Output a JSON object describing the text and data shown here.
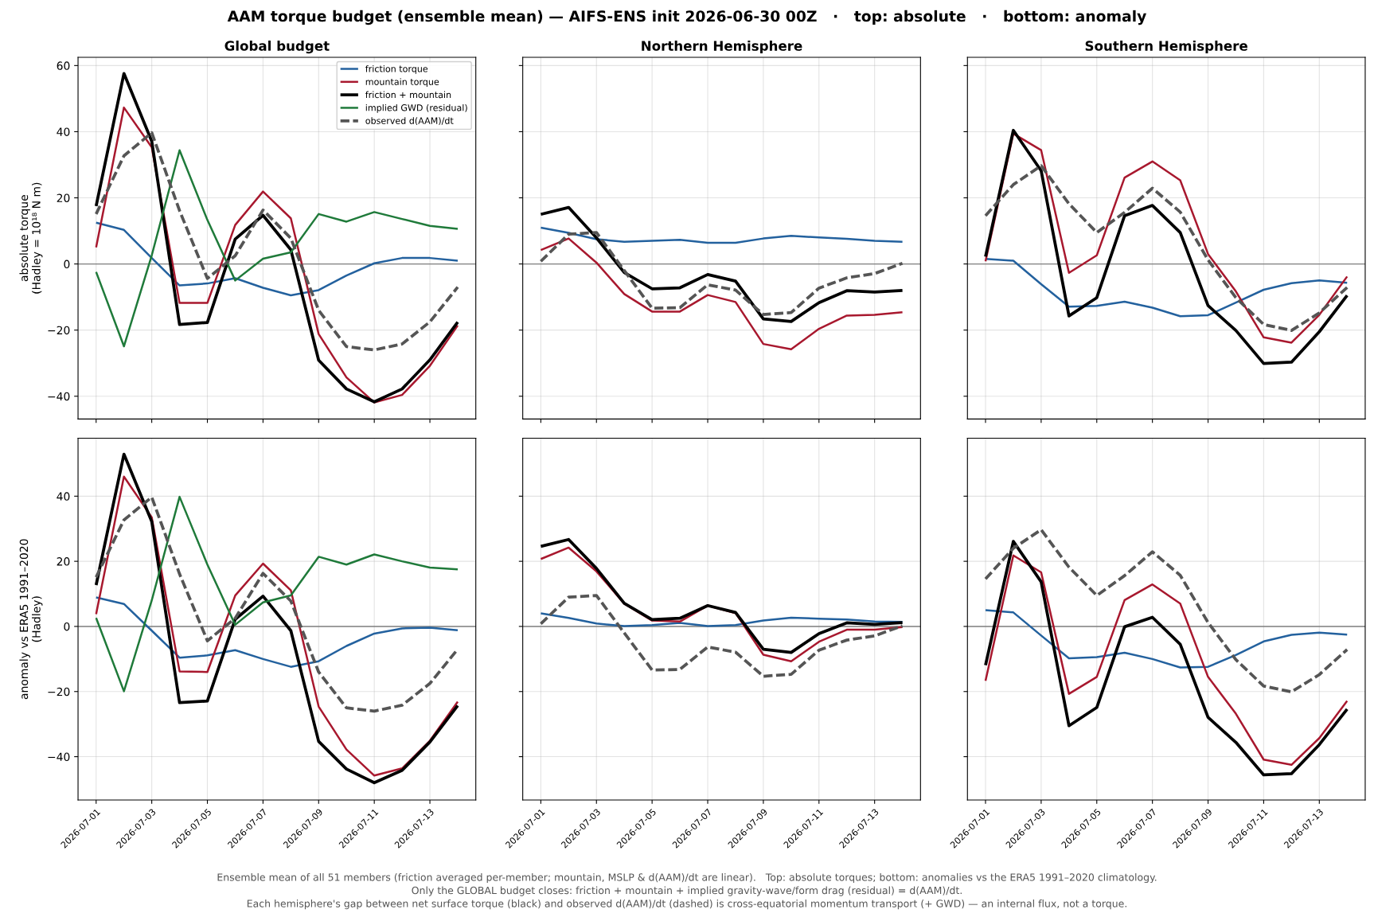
{
  "chart_data": [
    {
      "type": "other",
      "title": "AAM torque budget (ensemble mean) — AIFS-ENS init 2026-06-30 00Z   ·   top: absolute   ·   bottom: anomaly",
      "annotations": [
        "Ensemble mean of all 51 members (friction averaged per-member; mountain, MSLP & d(AAM)/dt are linear).   Top: absolute torques; bottom: anomalies vs the ERA5 1991–2020 climatology.",
        "Only the GLOBAL budget closes: friction + mountain + implied gravity-wave/form drag (residual) = d(AAM)/dt.",
        "Each hemisphere's gap between net surface torque (black) and observed d(AAM)/dt (dashed) is cross-equatorial momentum transport (+ GWD) — an internal flux, not a torque."
      ]
    },
    {
      "type": "line",
      "title": "Global budget",
      "ylabel": "absolute torque\n(Hadley = 10¹⁸ N m)",
      "x": [
        "2026-07-01",
        "2026-07-02",
        "2026-07-03",
        "2026-07-04",
        "2026-07-05",
        "2026-07-06",
        "2026-07-07",
        "2026-07-08",
        "2026-07-09",
        "2026-07-10",
        "2026-07-11",
        "2026-07-12",
        "2026-07-13",
        "2026-07-14"
      ],
      "xlim": [
        "2026-06-30T08:24",
        "2026-07-14T15:36"
      ],
      "xticks": [
        "2026-07-01",
        "2026-07-03",
        "2026-07-05",
        "2026-07-07",
        "2026-07-09",
        "2026-07-11",
        "2026-07-13"
      ],
      "ylim": [
        -46.9,
        62.5
      ],
      "yticks": [
        -40,
        -20,
        0,
        20,
        40,
        60
      ],
      "grid": true,
      "legend": "top right",
      "tick_labels": "y",
      "ref_lines": [
        {
          "axis": "y",
          "value": 0,
          "color": "#808080"
        }
      ],
      "series": [
        {
          "name": "friction torque",
          "color": "#23619e",
          "values": [
            12.5,
            10.3,
            1.8,
            -6.5,
            -5.9,
            -4.3,
            -7.2,
            -9.5,
            -7.9,
            -3.5,
            0.2,
            1.8,
            1.8,
            1.0
          ]
        },
        {
          "name": "mountain torque",
          "color": "#a8182e",
          "values": [
            5.0,
            47.3,
            35.3,
            -11.8,
            -11.8,
            11.8,
            21.9,
            13.8,
            -21.2,
            -34.3,
            -41.9,
            -39.6,
            -30.8,
            -18.6
          ]
        },
        {
          "name": "friction + mountain",
          "color": "#000000",
          "values": [
            17.5,
            57.6,
            37.1,
            -18.3,
            -17.7,
            7.5,
            14.7,
            4.3,
            -29.1,
            -37.8,
            -41.7,
            -37.8,
            -29.0,
            -17.6
          ]
        },
        {
          "name": "implied GWD (residual)",
          "color": "#1f7a3a",
          "values": [
            -2.4,
            -24.9,
            2.6,
            34.4,
            13.3,
            -5.0,
            1.6,
            3.5,
            15.1,
            12.8,
            15.7,
            13.6,
            11.5,
            10.6
          ]
        },
        {
          "name": "observed d(AAM)/dt",
          "color": "#555555",
          "line_style": "dashed",
          "values": [
            15.1,
            32.7,
            39.7,
            16.1,
            -4.4,
            2.5,
            16.3,
            7.8,
            -14.0,
            -25.0,
            -26.0,
            -24.2,
            -17.5,
            -7.0
          ]
        }
      ]
    },
    {
      "type": "line",
      "title": "Northern Hemisphere",
      "x": [
        "2026-07-01",
        "2026-07-02",
        "2026-07-03",
        "2026-07-04",
        "2026-07-05",
        "2026-07-06",
        "2026-07-07",
        "2026-07-08",
        "2026-07-09",
        "2026-07-10",
        "2026-07-11",
        "2026-07-12",
        "2026-07-13",
        "2026-07-14"
      ],
      "xlim": [
        "2026-06-30T08:24",
        "2026-07-14T15:36"
      ],
      "xticks": [
        "2026-07-01",
        "2026-07-03",
        "2026-07-05",
        "2026-07-07",
        "2026-07-09",
        "2026-07-11",
        "2026-07-13"
      ],
      "ylim": [
        -46.9,
        62.5
      ],
      "yticks": [
        -40,
        -20,
        0,
        20,
        40,
        60
      ],
      "grid": true,
      "tick_labels": false,
      "ref_lines": [
        {
          "axis": "y",
          "value": 0,
          "color": "#808080"
        }
      ],
      "series": [
        {
          "color": "#23619e",
          "values": [
            11.0,
            9.4,
            7.5,
            6.7,
            7.0,
            7.3,
            6.4,
            6.4,
            7.7,
            8.5,
            8.0,
            7.6,
            7.0,
            6.7
          ]
        },
        {
          "color": "#a8182e",
          "values": [
            4.2,
            7.7,
            0.4,
            -9.1,
            -14.4,
            -14.4,
            -9.4,
            -11.5,
            -24.2,
            -25.8,
            -19.6,
            -15.6,
            -15.4,
            -14.6
          ]
        },
        {
          "color": "#000000",
          "values": [
            15.0,
            17.1,
            7.9,
            -2.6,
            -7.5,
            -7.2,
            -3.2,
            -5.2,
            -16.6,
            -17.4,
            -11.7,
            -8.1,
            -8.5,
            -8.0
          ]
        },
        {
          "color": "#555555",
          "line_style": "dashed",
          "values": [
            0.8,
            9.0,
            9.5,
            -2.0,
            -13.4,
            -13.2,
            -6.3,
            -7.9,
            -15.3,
            -14.7,
            -7.3,
            -4.2,
            -2.9,
            0.2
          ]
        }
      ]
    },
    {
      "type": "line",
      "title": "Southern Hemisphere",
      "x": [
        "2026-07-01",
        "2026-07-02",
        "2026-07-03",
        "2026-07-04",
        "2026-07-05",
        "2026-07-06",
        "2026-07-07",
        "2026-07-08",
        "2026-07-09",
        "2026-07-10",
        "2026-07-11",
        "2026-07-12",
        "2026-07-13",
        "2026-07-14"
      ],
      "xlim": [
        "2026-06-30T08:24",
        "2026-07-14T15:36"
      ],
      "xticks": [
        "2026-07-01",
        "2026-07-03",
        "2026-07-05",
        "2026-07-07",
        "2026-07-09",
        "2026-07-11",
        "2026-07-13"
      ],
      "ylim": [
        -46.9,
        62.5
      ],
      "yticks": [
        -40,
        -20,
        0,
        20,
        40,
        60
      ],
      "grid": true,
      "tick_labels": false,
      "ref_lines": [
        {
          "axis": "y",
          "value": 0,
          "color": "#808080"
        }
      ],
      "series": [
        {
          "color": "#23619e",
          "values": [
            1.5,
            1.0,
            -6.1,
            -12.9,
            -12.7,
            -11.4,
            -13.2,
            -15.8,
            -15.5,
            -11.7,
            -7.8,
            -5.8,
            -5.0,
            -5.7
          ]
        },
        {
          "color": "#a8182e",
          "values": [
            0.8,
            39.4,
            34.4,
            -2.7,
            2.6,
            26.1,
            31.0,
            25.3,
            3.0,
            -8.3,
            -22.2,
            -23.8,
            -15.4,
            -3.8
          ]
        },
        {
          "color": "#000000",
          "values": [
            2.2,
            40.4,
            28.2,
            -15.7,
            -10.2,
            14.6,
            17.7,
            9.5,
            -12.6,
            -20.1,
            -30.1,
            -29.7,
            -20.5,
            -9.5
          ]
        },
        {
          "color": "#555555",
          "line_style": "dashed",
          "values": [
            14.6,
            24.0,
            29.7,
            18.2,
            9.5,
            15.6,
            22.9,
            15.7,
            1.2,
            -10.2,
            -18.3,
            -20.1,
            -14.8,
            -7.1
          ]
        }
      ]
    },
    {
      "type": "line",
      "ylabel": "anomaly vs ERA5 1991–2020\n(Hadley)",
      "x": [
        "2026-07-01",
        "2026-07-02",
        "2026-07-03",
        "2026-07-04",
        "2026-07-05",
        "2026-07-06",
        "2026-07-07",
        "2026-07-08",
        "2026-07-09",
        "2026-07-10",
        "2026-07-11",
        "2026-07-12",
        "2026-07-13",
        "2026-07-14"
      ],
      "xlim": [
        "2026-06-30T08:24",
        "2026-07-14T15:36"
      ],
      "xticks": [
        "2026-07-01",
        "2026-07-03",
        "2026-07-05",
        "2026-07-07",
        "2026-07-09",
        "2026-07-11",
        "2026-07-13"
      ],
      "ylim": [
        -53.3,
        57.8
      ],
      "yticks": [
        -40,
        -20,
        0,
        20,
        40
      ],
      "grid": true,
      "ref_lines": [
        {
          "axis": "y",
          "value": 0,
          "color": "#808080"
        }
      ],
      "series": [
        {
          "color": "#23619e",
          "values": [
            8.9,
            6.9,
            -1.3,
            -9.6,
            -8.9,
            -7.3,
            -10.0,
            -12.4,
            -10.7,
            -6.0,
            -2.2,
            -0.6,
            -0.4,
            -1.2
          ]
        },
        {
          "color": "#a8182e",
          "values": [
            3.8,
            46.0,
            33.5,
            -13.8,
            -14.0,
            9.5,
            19.3,
            11.1,
            -24.6,
            -37.8,
            -45.8,
            -43.6,
            -35.1,
            -23.1
          ]
        },
        {
          "color": "#000000",
          "values": [
            12.7,
            52.9,
            32.2,
            -23.4,
            -22.9,
            2.2,
            9.3,
            -1.3,
            -35.3,
            -43.8,
            -48.0,
            -44.2,
            -35.5,
            -24.3
          ]
        },
        {
          "color": "#1f7a3a",
          "values": [
            2.6,
            -19.9,
            8.0,
            39.8,
            19.0,
            0.5,
            7.4,
            9.5,
            21.4,
            19.0,
            22.1,
            20.0,
            18.1,
            17.5
          ]
        },
        {
          "color": "#555555",
          "line_style": "dashed",
          "values": [
            15.1,
            32.7,
            39.7,
            16.1,
            -4.4,
            2.5,
            16.3,
            7.8,
            -14.0,
            -25.0,
            -26.0,
            -24.2,
            -17.5,
            -7.0
          ]
        }
      ]
    },
    {
      "type": "line",
      "x": [
        "2026-07-01",
        "2026-07-02",
        "2026-07-03",
        "2026-07-04",
        "2026-07-05",
        "2026-07-06",
        "2026-07-07",
        "2026-07-08",
        "2026-07-09",
        "2026-07-10",
        "2026-07-11",
        "2026-07-12",
        "2026-07-13",
        "2026-07-14"
      ],
      "xlim": [
        "2026-06-30T08:24",
        "2026-07-14T15:36"
      ],
      "xticks": [
        "2026-07-01",
        "2026-07-03",
        "2026-07-05",
        "2026-07-07",
        "2026-07-09",
        "2026-07-11",
        "2026-07-13"
      ],
      "ylim": [
        -53.3,
        57.8
      ],
      "yticks": [
        -40,
        -20,
        0,
        20,
        40
      ],
      "grid": true,
      "tick_labels": "x",
      "ref_lines": [
        {
          "axis": "y",
          "value": 0,
          "color": "#808080"
        }
      ],
      "series": [
        {
          "color": "#23619e",
          "values": [
            4.0,
            2.6,
            0.9,
            0.1,
            0.4,
            1.1,
            0.1,
            0.4,
            1.8,
            2.7,
            2.4,
            2.1,
            1.5,
            1.4
          ]
        },
        {
          "color": "#a8182e",
          "values": [
            20.7,
            24.2,
            16.9,
            7.0,
            1.8,
            1.5,
            6.4,
            4.1,
            -8.7,
            -10.7,
            -4.7,
            -1.0,
            -1.0,
            -0.2
          ]
        },
        {
          "color": "#000000",
          "values": [
            24.6,
            26.7,
            17.8,
            7.1,
            2.1,
            2.5,
            6.4,
            4.3,
            -7.0,
            -8.0,
            -2.2,
            1.1,
            0.6,
            1.2
          ]
        },
        {
          "color": "#555555",
          "line_style": "dashed",
          "values": [
            0.8,
            9.0,
            9.5,
            -2.0,
            -13.4,
            -13.2,
            -6.3,
            -7.9,
            -15.3,
            -14.7,
            -7.3,
            -4.2,
            -2.9,
            0.2
          ]
        }
      ]
    },
    {
      "type": "line",
      "x": [
        "2026-07-01",
        "2026-07-02",
        "2026-07-03",
        "2026-07-04",
        "2026-07-05",
        "2026-07-06",
        "2026-07-07",
        "2026-07-08",
        "2026-07-09",
        "2026-07-10",
        "2026-07-11",
        "2026-07-12",
        "2026-07-13",
        "2026-07-14"
      ],
      "xlim": [
        "2026-06-30T08:24",
        "2026-07-14T15:36"
      ],
      "xticks": [
        "2026-07-01",
        "2026-07-03",
        "2026-07-05",
        "2026-07-07",
        "2026-07-09",
        "2026-07-11",
        "2026-07-13"
      ],
      "ylim": [
        -53.3,
        57.8
      ],
      "yticks": [
        -40,
        -20,
        0,
        20,
        40
      ],
      "grid": true,
      "tick_labels": "x",
      "ref_lines": [
        {
          "axis": "y",
          "value": 0,
          "color": "#808080"
        }
      ],
      "series": [
        {
          "color": "#23619e",
          "values": [
            5.0,
            4.3,
            -2.8,
            -9.8,
            -9.4,
            -8.1,
            -10.0,
            -12.6,
            -12.4,
            -8.8,
            -4.6,
            -2.6,
            -1.9,
            -2.5
          ]
        },
        {
          "color": "#a8182e",
          "values": [
            -16.7,
            21.8,
            16.6,
            -20.7,
            -15.5,
            8.1,
            12.9,
            7.0,
            -15.5,
            -26.8,
            -40.9,
            -42.5,
            -34.3,
            -22.9
          ]
        },
        {
          "color": "#000000",
          "values": [
            -11.9,
            26.1,
            13.7,
            -30.5,
            -24.9,
            -0.1,
            2.8,
            -5.5,
            -27.9,
            -35.6,
            -45.6,
            -45.2,
            -36.3,
            -25.4
          ]
        },
        {
          "color": "#555555",
          "line_style": "dashed",
          "values": [
            14.6,
            24.0,
            29.7,
            18.2,
            9.5,
            15.6,
            22.9,
            15.7,
            1.2,
            -10.2,
            -18.3,
            -20.1,
            -14.8,
            -7.1
          ]
        }
      ]
    }
  ]
}
